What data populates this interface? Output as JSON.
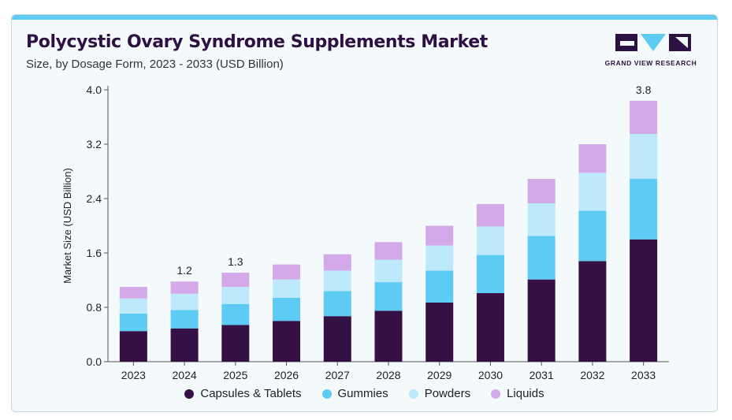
{
  "title": "Polycystic Ovary Syndrome Supplements Market",
  "subtitle": "Size, by Dosage Form, 2023 - 2033 (USD Billion)",
  "logo_text": "GRAND VIEW RESEARCH",
  "colors": {
    "accent_bar": "#5ecbf5",
    "title": "#2e1143",
    "logo": "#2e1143",
    "logo_accent": "#5ecbf5"
  },
  "chart_data": {
    "type": "bar",
    "stacked": true,
    "categories": [
      "2023",
      "2024",
      "2025",
      "2026",
      "2027",
      "2028",
      "2029",
      "2030",
      "2031",
      "2032",
      "2033"
    ],
    "series": [
      {
        "name": "Capsules & Tablets",
        "color": "#341045",
        "values": [
          0.45,
          0.49,
          0.54,
          0.6,
          0.67,
          0.75,
          0.87,
          1.01,
          1.21,
          1.48,
          1.8
        ]
      },
      {
        "name": "Gummies",
        "color": "#5ecbf5",
        "values": [
          0.26,
          0.27,
          0.31,
          0.34,
          0.37,
          0.42,
          0.47,
          0.56,
          0.64,
          0.74,
          0.89
        ]
      },
      {
        "name": "Powders",
        "color": "#bde9fb",
        "values": [
          0.22,
          0.24,
          0.25,
          0.27,
          0.3,
          0.33,
          0.37,
          0.42,
          0.48,
          0.56,
          0.66
        ]
      },
      {
        "name": "Liquids",
        "color": "#d4a9e9",
        "values": [
          0.17,
          0.18,
          0.21,
          0.22,
          0.24,
          0.26,
          0.29,
          0.33,
          0.36,
          0.42,
          0.49
        ]
      }
    ],
    "data_labels": [
      {
        "category": "2024",
        "text": "1.2"
      },
      {
        "category": "2025",
        "text": "1.3"
      },
      {
        "category": "2033",
        "text": "3.8"
      }
    ],
    "ylabel": "Market Size (USD Billion)",
    "xlabel": "",
    "ylim": [
      0,
      4.0
    ],
    "yticks": [
      "0.0",
      "0.8",
      "1.6",
      "2.4",
      "3.2",
      "4.0"
    ],
    "grid": false,
    "legend_position": "bottom"
  }
}
